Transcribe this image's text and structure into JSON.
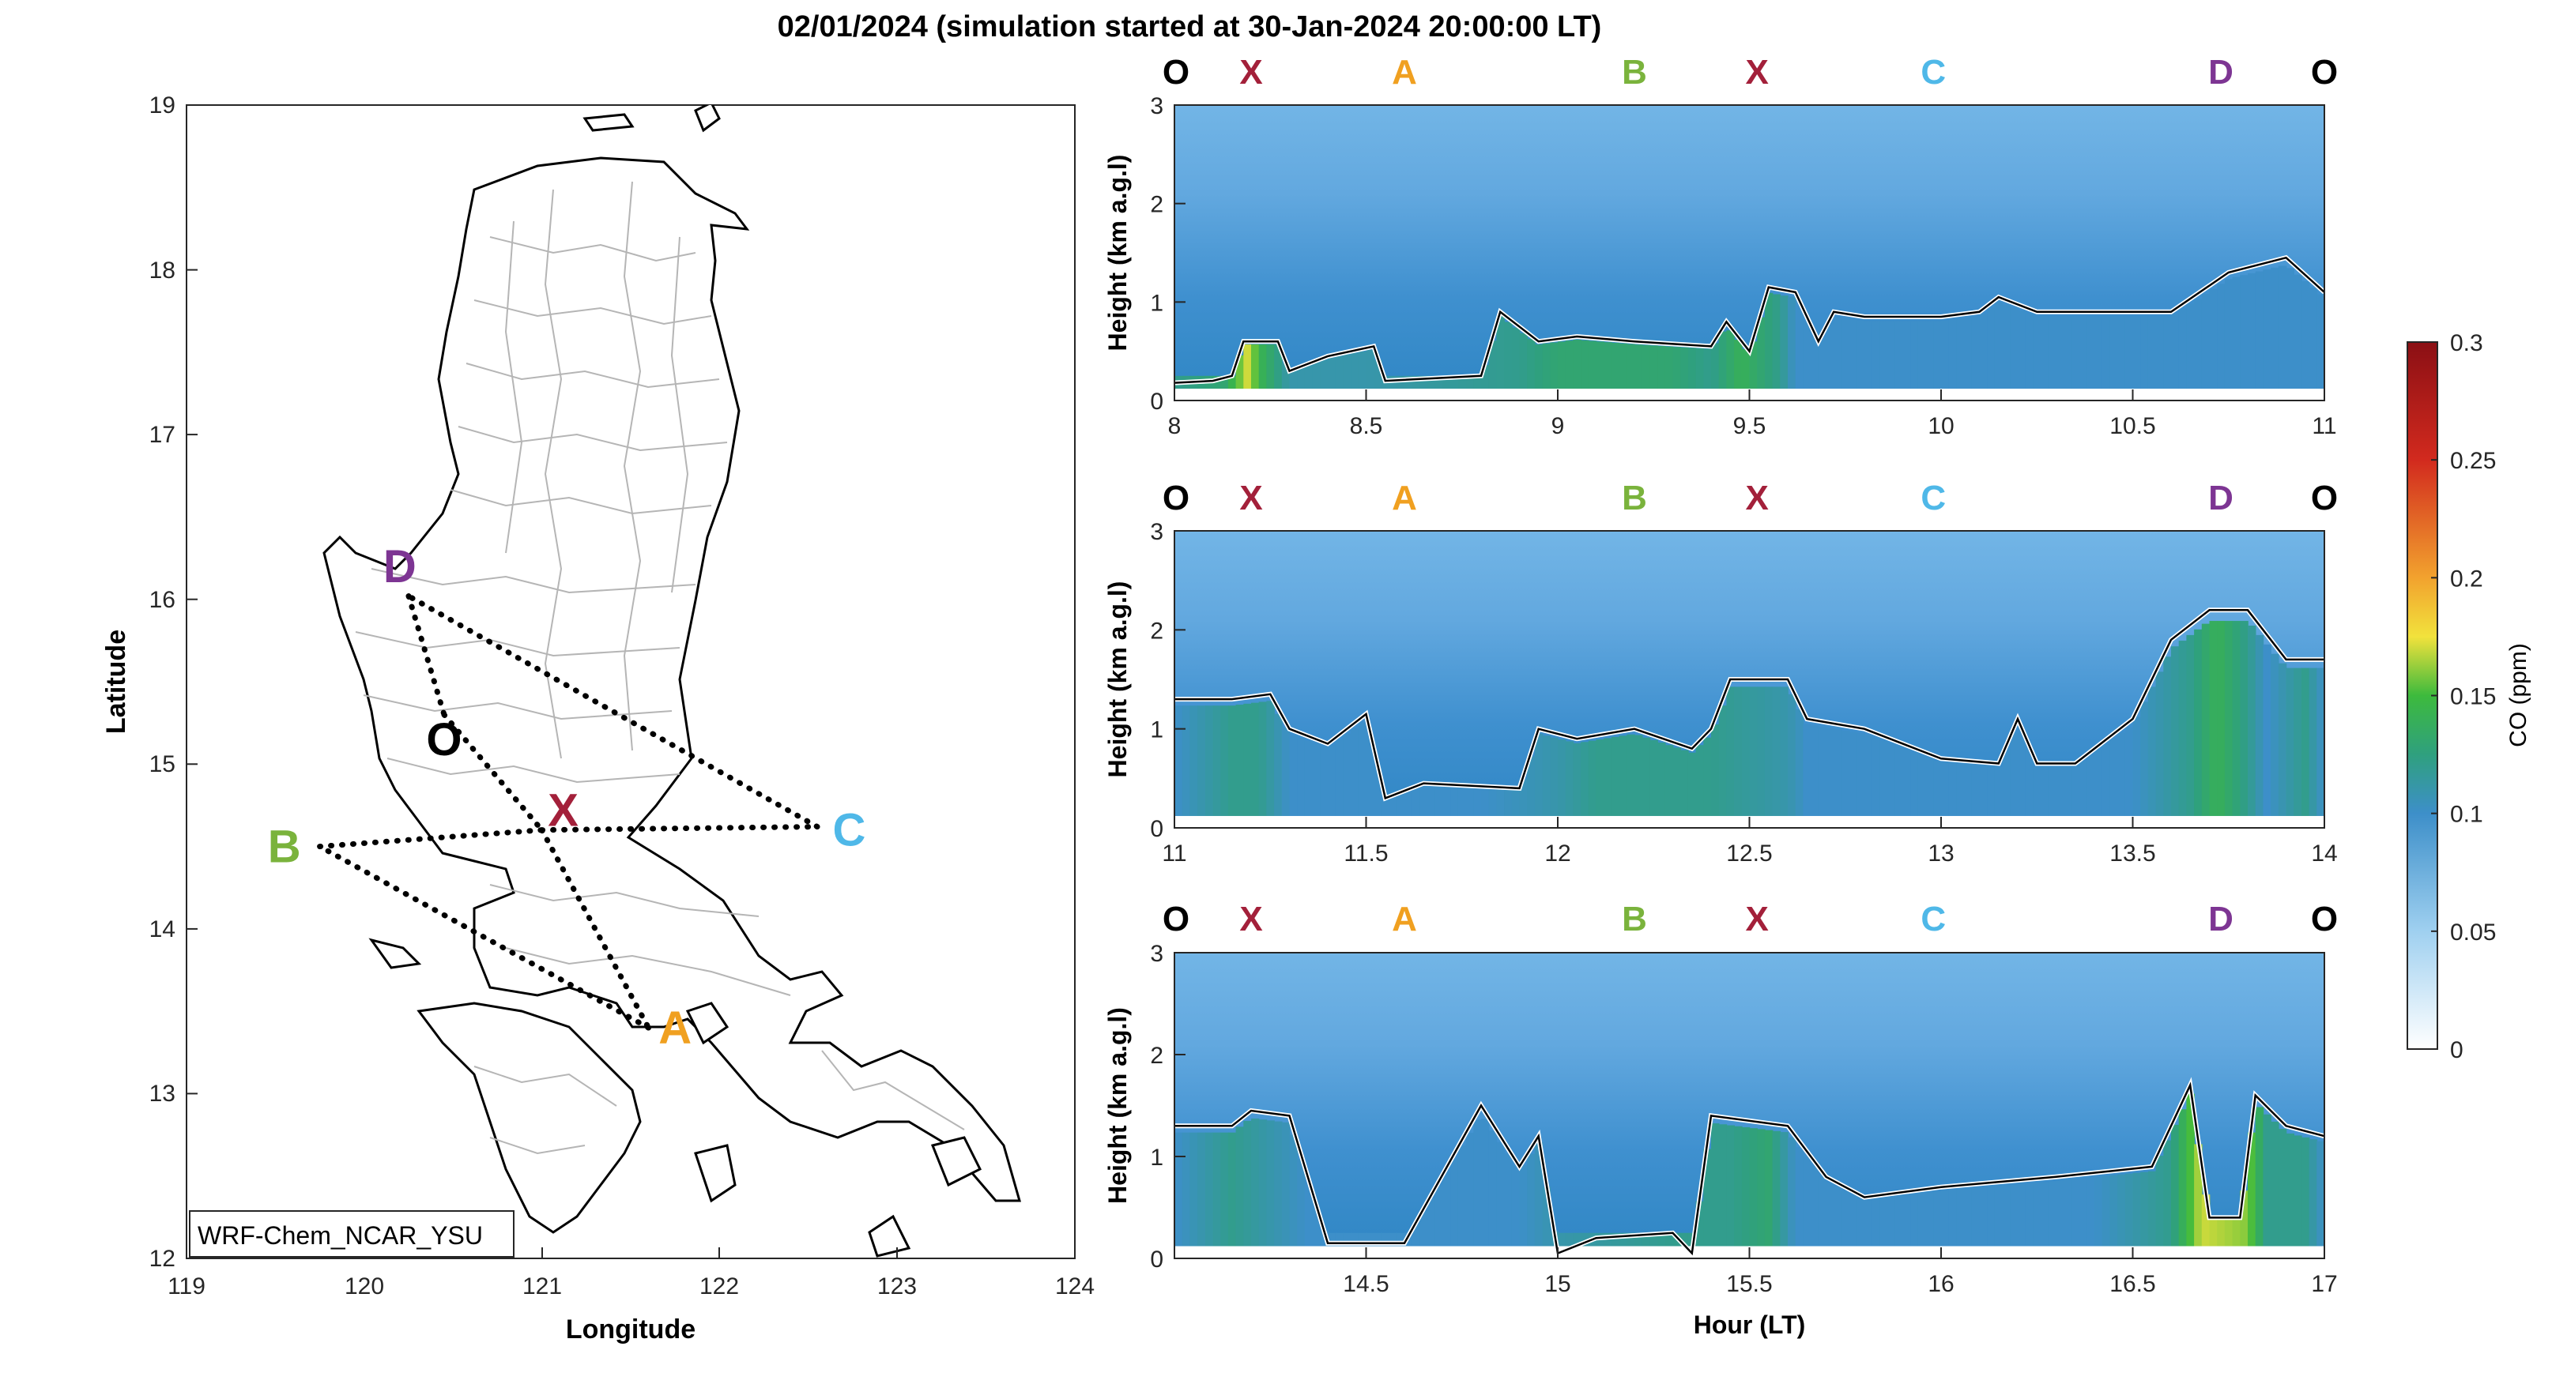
{
  "figure": {
    "title": "02/01/2024 (simulation started at 30-Jan-2024 20:00:00 LT)",
    "colors": {
      "marker_O": "#000000",
      "marker_X": "#a3203a",
      "marker_A": "#f0a020",
      "marker_B": "#7ab33c",
      "marker_C": "#4fb8e8",
      "marker_D": "#7d3593"
    }
  },
  "chart_data": [
    {
      "type": "map",
      "xlabel": "Longitude",
      "ylabel": "Latitude",
      "xlim": [
        119,
        124
      ],
      "ylim": [
        12,
        19
      ],
      "xticks": [
        "119",
        "120",
        "121",
        "122",
        "123",
        "124"
      ],
      "yticks": [
        "12",
        "13",
        "14",
        "15",
        "16",
        "17",
        "18",
        "19"
      ],
      "annotation": "WRF-Chem_NCAR_YSU",
      "flight_points": [
        {
          "label": "D",
          "lon": 120.25,
          "lat": 16.02,
          "label_lon": 120.2,
          "label_lat": 16.2
        },
        {
          "label": "O",
          "lon": 120.45,
          "lat": 15.3,
          "label_lon": 120.45,
          "label_lat": 15.15
        },
        {
          "label": "X",
          "lon": 121.0,
          "lat": 14.6,
          "label_lon": 121.12,
          "label_lat": 14.72
        },
        {
          "label": "C",
          "lon": 122.55,
          "lat": 14.62,
          "label_lon": 122.73,
          "label_lat": 14.6
        },
        {
          "label": "B",
          "lon": 119.75,
          "lat": 14.5,
          "label_lon": 119.55,
          "label_lat": 14.5
        },
        {
          "label": "A",
          "lon": 121.6,
          "lat": 13.4,
          "label_lon": 121.75,
          "label_lat": 13.4
        }
      ],
      "track": [
        "D",
        "O",
        "X",
        "A",
        "B",
        "X",
        "C",
        "D"
      ]
    },
    {
      "type": "heatmap",
      "ylabel": "Height (km a.g.l)",
      "xlim": [
        8,
        11
      ],
      "ylim": [
        0,
        3
      ],
      "xticks": [
        "8",
        "8.5",
        "9",
        "9.5",
        "10",
        "10.5",
        "11"
      ],
      "yticks": [
        "0",
        "1",
        "2",
        "3"
      ],
      "waypoints": [
        {
          "label": "O",
          "hour": 8.0
        },
        {
          "label": "X",
          "hour": 8.2
        },
        {
          "label": "A",
          "hour": 8.6
        },
        {
          "label": "B",
          "hour": 9.2
        },
        {
          "label": "X",
          "hour": 9.52
        },
        {
          "label": "C",
          "hour": 9.98
        },
        {
          "label": "D",
          "hour": 10.73
        },
        {
          "label": "O",
          "hour": 11.0
        }
      ],
      "co_surface_ppm": [
        [
          8.0,
          0.12
        ],
        [
          8.13,
          0.13
        ],
        [
          8.19,
          0.17
        ],
        [
          8.23,
          0.14
        ],
        [
          8.3,
          0.11
        ],
        [
          8.5,
          0.11
        ],
        [
          8.9,
          0.12
        ],
        [
          9.0,
          0.13
        ],
        [
          9.3,
          0.13
        ],
        [
          9.4,
          0.12
        ],
        [
          9.48,
          0.14
        ],
        [
          9.58,
          0.12
        ],
        [
          9.62,
          0.1
        ],
        [
          10.0,
          0.1
        ],
        [
          10.5,
          0.1
        ],
        [
          11.0,
          0.1
        ]
      ],
      "boundary_layer_km": [
        [
          8.0,
          0.18
        ],
        [
          8.1,
          0.2
        ],
        [
          8.15,
          0.25
        ],
        [
          8.18,
          0.6
        ],
        [
          8.27,
          0.6
        ],
        [
          8.3,
          0.3
        ],
        [
          8.4,
          0.45
        ],
        [
          8.52,
          0.55
        ],
        [
          8.55,
          0.2
        ],
        [
          8.8,
          0.25
        ],
        [
          8.85,
          0.9
        ],
        [
          8.95,
          0.6
        ],
        [
          9.05,
          0.65
        ],
        [
          9.2,
          0.6
        ],
        [
          9.4,
          0.55
        ],
        [
          9.44,
          0.8
        ],
        [
          9.5,
          0.5
        ],
        [
          9.55,
          1.15
        ],
        [
          9.62,
          1.1
        ],
        [
          9.68,
          0.6
        ],
        [
          9.72,
          0.9
        ],
        [
          9.8,
          0.85
        ],
        [
          10.0,
          0.85
        ],
        [
          10.1,
          0.9
        ],
        [
          10.15,
          1.05
        ],
        [
          10.25,
          0.9
        ],
        [
          10.6,
          0.9
        ],
        [
          10.75,
          1.3
        ],
        [
          10.9,
          1.45
        ],
        [
          11.0,
          1.1
        ]
      ]
    },
    {
      "type": "heatmap",
      "ylabel": "Height (km a.g.l)",
      "xlim": [
        11,
        14
      ],
      "ylim": [
        0,
        3
      ],
      "xticks": [
        "11",
        "11.5",
        "12",
        "12.5",
        "13",
        "13.5",
        "14"
      ],
      "yticks": [
        "0",
        "1",
        "2",
        "3"
      ],
      "waypoints": [
        {
          "label": "O",
          "hour": 11.0
        },
        {
          "label": "X",
          "hour": 11.2
        },
        {
          "label": "A",
          "hour": 11.6
        },
        {
          "label": "B",
          "hour": 12.2
        },
        {
          "label": "X",
          "hour": 12.52
        },
        {
          "label": "C",
          "hour": 12.98
        },
        {
          "label": "D",
          "hour": 13.73
        },
        {
          "label": "O",
          "hour": 14.0
        }
      ],
      "co_surface_ppm": [
        [
          11.0,
          0.1
        ],
        [
          11.15,
          0.12
        ],
        [
          11.22,
          0.12
        ],
        [
          11.3,
          0.1
        ],
        [
          11.8,
          0.1
        ],
        [
          12.0,
          0.11
        ],
        [
          12.1,
          0.12
        ],
        [
          12.4,
          0.12
        ],
        [
          12.6,
          0.11
        ],
        [
          12.65,
          0.1
        ],
        [
          13.5,
          0.1
        ],
        [
          13.65,
          0.12
        ],
        [
          13.72,
          0.14
        ],
        [
          13.8,
          0.12
        ],
        [
          13.85,
          0.1
        ],
        [
          13.95,
          0.12
        ],
        [
          14.0,
          0.1
        ]
      ],
      "boundary_layer_km": [
        [
          11.0,
          1.3
        ],
        [
          11.15,
          1.3
        ],
        [
          11.25,
          1.35
        ],
        [
          11.3,
          1.0
        ],
        [
          11.4,
          0.85
        ],
        [
          11.5,
          1.15
        ],
        [
          11.55,
          0.3
        ],
        [
          11.65,
          0.45
        ],
        [
          11.9,
          0.4
        ],
        [
          11.95,
          1.0
        ],
        [
          12.05,
          0.9
        ],
        [
          12.2,
          1.0
        ],
        [
          12.35,
          0.8
        ],
        [
          12.4,
          1.0
        ],
        [
          12.45,
          1.5
        ],
        [
          12.6,
          1.5
        ],
        [
          12.65,
          1.1
        ],
        [
          12.8,
          1.0
        ],
        [
          13.0,
          0.7
        ],
        [
          13.15,
          0.65
        ],
        [
          13.2,
          1.1
        ],
        [
          13.25,
          0.65
        ],
        [
          13.35,
          0.65
        ],
        [
          13.5,
          1.1
        ],
        [
          13.6,
          1.9
        ],
        [
          13.7,
          2.2
        ],
        [
          13.8,
          2.2
        ],
        [
          13.9,
          1.7
        ],
        [
          14.0,
          1.7
        ]
      ]
    },
    {
      "type": "heatmap",
      "xlabel": "Hour (LT)",
      "ylabel": "Height (km a.g.l)",
      "xlim": [
        14,
        17
      ],
      "ylim": [
        0,
        3
      ],
      "xticks": [
        "14.5",
        "15",
        "15.5",
        "16",
        "16.5",
        "17"
      ],
      "yticks": [
        "0",
        "1",
        "2",
        "3"
      ],
      "waypoints": [
        {
          "label": "O",
          "hour": 14.0
        },
        {
          "label": "X",
          "hour": 14.2
        },
        {
          "label": "A",
          "hour": 14.6
        },
        {
          "label": "B",
          "hour": 15.2
        },
        {
          "label": "X",
          "hour": 15.52
        },
        {
          "label": "C",
          "hour": 15.98
        },
        {
          "label": "D",
          "hour": 16.73
        },
        {
          "label": "O",
          "hour": 17.0
        }
      ],
      "co_surface_ppm": [
        [
          14.0,
          0.1
        ],
        [
          14.15,
          0.12
        ],
        [
          14.25,
          0.11
        ],
        [
          14.35,
          0.1
        ],
        [
          14.9,
          0.1
        ],
        [
          15.0,
          0.11
        ],
        [
          15.3,
          0.12
        ],
        [
          15.45,
          0.12
        ],
        [
          15.55,
          0.13
        ],
        [
          15.62,
          0.1
        ],
        [
          16.4,
          0.1
        ],
        [
          16.6,
          0.12
        ],
        [
          16.68,
          0.17
        ],
        [
          16.8,
          0.16
        ],
        [
          16.85,
          0.12
        ],
        [
          16.95,
          0.12
        ],
        [
          17.0,
          0.1
        ]
      ],
      "boundary_layer_km": [
        [
          14.0,
          1.3
        ],
        [
          14.15,
          1.3
        ],
        [
          14.2,
          1.45
        ],
        [
          14.3,
          1.4
        ],
        [
          14.4,
          0.15
        ],
        [
          14.6,
          0.15
        ],
        [
          14.8,
          1.5
        ],
        [
          14.9,
          0.9
        ],
        [
          14.95,
          1.2
        ],
        [
          15.0,
          0.05
        ],
        [
          15.1,
          0.2
        ],
        [
          15.3,
          0.25
        ],
        [
          15.35,
          0.05
        ],
        [
          15.4,
          1.4
        ],
        [
          15.6,
          1.3
        ],
        [
          15.7,
          0.8
        ],
        [
          15.8,
          0.6
        ],
        [
          16.0,
          0.7
        ],
        [
          16.3,
          0.8
        ],
        [
          16.55,
          0.9
        ],
        [
          16.65,
          1.7
        ],
        [
          16.7,
          0.4
        ],
        [
          16.78,
          0.4
        ],
        [
          16.82,
          1.6
        ],
        [
          16.9,
          1.3
        ],
        [
          17.0,
          1.2
        ]
      ]
    },
    {
      "type": "colorbar",
      "label": "CO (ppm)",
      "range": [
        0,
        0.3
      ],
      "ticks": [
        "0",
        "0.05",
        "0.1",
        "0.15",
        "0.2",
        "0.25",
        "0.3"
      ]
    }
  ]
}
